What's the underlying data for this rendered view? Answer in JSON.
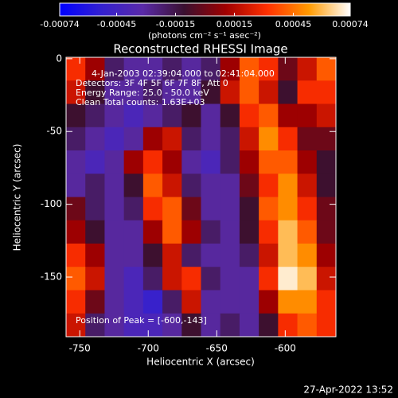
{
  "chart_data": {
    "type": "heatmap",
    "title": "Reconstructed RHESSI Image",
    "xlabel": "Heliocentric X (arcsec)",
    "ylabel": "Heliocentric Y (arcsec)",
    "xlim": [
      -760,
      -563
    ],
    "ylim": [
      1,
      -191
    ],
    "xticks": [
      -750,
      -700,
      -650,
      -600
    ],
    "yticks": [
      0,
      -50,
      -100,
      -150
    ],
    "zlim": [
      -0.00074,
      0.00074
    ],
    "colorbar_ticks": [
      -0.00074,
      -0.00045,
      -0.00015,
      0.00015,
      0.00045,
      0.00074
    ],
    "colorbar_label": "(photons cm⁻² s⁻¹ asec⁻²)",
    "colorscale": [
      "#0000ff",
      "#3320d0",
      "#5a2aa8",
      "#3a1030",
      "#a00000",
      "#ff3000",
      "#ff9a00",
      "#ffffff"
    ],
    "annotations": [
      "4-Jan-2003 02:39:04.000 to 02:41:04.000",
      "Detectors: 3F 4F 5F 6F 7F 8F, Att 0",
      "Energy Range: 25.0 - 50.0 keV",
      "Clean     Total counts: 1.63E+03"
    ],
    "peak_label": "Position of Peak = [-600,-143]",
    "timestamp": "27-Apr-2022 13:52",
    "z": [
      [
        0.0003,
        0.0001,
        -0.0002,
        -0.0003,
        -0.0003,
        -0.0002,
        -0.0003,
        -0.0002,
        0.0001,
        0.0004,
        0.0003,
        0.0,
        0.0002,
        0.0004
      ],
      [
        0.0002,
        -0.0001,
        -0.0003,
        -0.0003,
        -0.0002,
        -0.0003,
        -0.0003,
        -0.0001,
        0.0002,
        0.0004,
        0.0002,
        -0.0001,
        0.0003,
        0.0003
      ],
      [
        -0.0001,
        -0.0002,
        -0.0003,
        -0.0004,
        -0.0003,
        -0.0002,
        -0.0001,
        -0.0003,
        -0.0001,
        0.0003,
        0.0004,
        0.0001,
        0.0001,
        0.0002
      ],
      [
        -0.0002,
        -0.0003,
        -0.0004,
        -0.0003,
        0.0001,
        0.0002,
        -0.0002,
        -0.0003,
        -0.0002,
        0.0002,
        0.0005,
        0.0003,
        0.0,
        0.0
      ],
      [
        -0.0003,
        -0.0004,
        -0.0003,
        0.0001,
        0.0003,
        0.0001,
        -0.0003,
        -0.0004,
        -0.0002,
        0.0001,
        0.0004,
        0.0004,
        0.0001,
        -0.0001
      ],
      [
        -0.0003,
        -0.0002,
        -0.0003,
        -0.0001,
        0.0004,
        0.0002,
        -0.0002,
        -0.0003,
        -0.0003,
        0.0,
        0.0003,
        0.0005,
        0.0002,
        -0.0001
      ],
      [
        0.0,
        -0.0002,
        -0.0003,
        -0.0002,
        0.0003,
        0.0004,
        0.0,
        -0.0003,
        -0.0003,
        -0.0001,
        0.0004,
        0.0005,
        0.0003,
        0.0
      ],
      [
        0.0001,
        -0.0001,
        -0.0003,
        -0.0003,
        0.0001,
        0.0004,
        0.0001,
        -0.0002,
        -0.0003,
        -0.0001,
        0.0003,
        0.0006,
        0.0004,
        0.0
      ],
      [
        0.0003,
        0.0001,
        -0.0003,
        -0.0003,
        -0.0001,
        0.0002,
        -0.0002,
        -0.0003,
        -0.0003,
        -0.0002,
        0.0002,
        0.0006,
        0.0005,
        0.0001
      ],
      [
        0.0004,
        0.0002,
        -0.0003,
        -0.0004,
        -0.0002,
        0.0002,
        0.0003,
        -0.0002,
        -0.0003,
        -0.0003,
        0.0003,
        0.0007,
        0.0006,
        0.0002
      ],
      [
        0.0003,
        0.0,
        -0.0003,
        -0.0004,
        -0.0005,
        -0.0002,
        0.0002,
        -0.0003,
        -0.0003,
        -0.0003,
        0.0001,
        0.0005,
        0.0005,
        0.0003
      ],
      [
        0.0002,
        -0.0002,
        -0.0003,
        -0.0004,
        -0.0004,
        -0.0003,
        -0.0001,
        -0.0003,
        -0.0002,
        -0.0003,
        -0.0001,
        0.0003,
        0.0004,
        0.0003
      ]
    ]
  }
}
